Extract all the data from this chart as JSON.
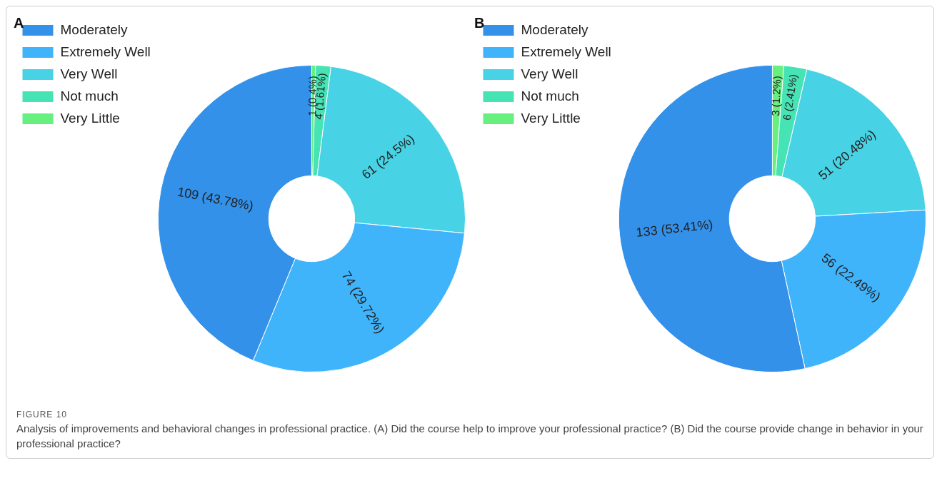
{
  "chart_data": [
    {
      "type": "donut",
      "title": "A",
      "categories": [
        "Moderately",
        "Extremely Well",
        "Very Well",
        "Not much",
        "Very Little"
      ],
      "values": [
        109,
        74,
        61,
        4,
        1
      ],
      "colors": [
        "#3391e9",
        "#40b4fb",
        "#47d3e5",
        "#46e3b5",
        "#67ef80"
      ],
      "value_labels": [
        "109 (43.78%)",
        "74 (29.72%)",
        "61 (24.5%)",
        "4 (1.61%)",
        "1 (0.4%)"
      ],
      "legend": "left",
      "annotations": [
        "FIGURE 10",
        "Analysis of improvements and behavioral changes in professional practice. (A) Did the course help to improve your professional practice? (B) Did the course provide change in behavior in your professional practice?"
      ]
    },
    {
      "type": "donut",
      "title": "B",
      "categories": [
        "Moderately",
        "Extremely Well",
        "Very Well",
        "Not much",
        "Very Little"
      ],
      "values": [
        133,
        56,
        51,
        6,
        3
      ],
      "colors": [
        "#3391e9",
        "#40b4fb",
        "#47d3e5",
        "#46e3b5",
        "#67ef80"
      ],
      "value_labels": [
        "133 (53.41%)",
        "56 (22.49%)",
        "51 (20.48%)",
        "6 (2.41%)",
        "3 (1.2%)"
      ],
      "legend": "left"
    }
  ]
}
